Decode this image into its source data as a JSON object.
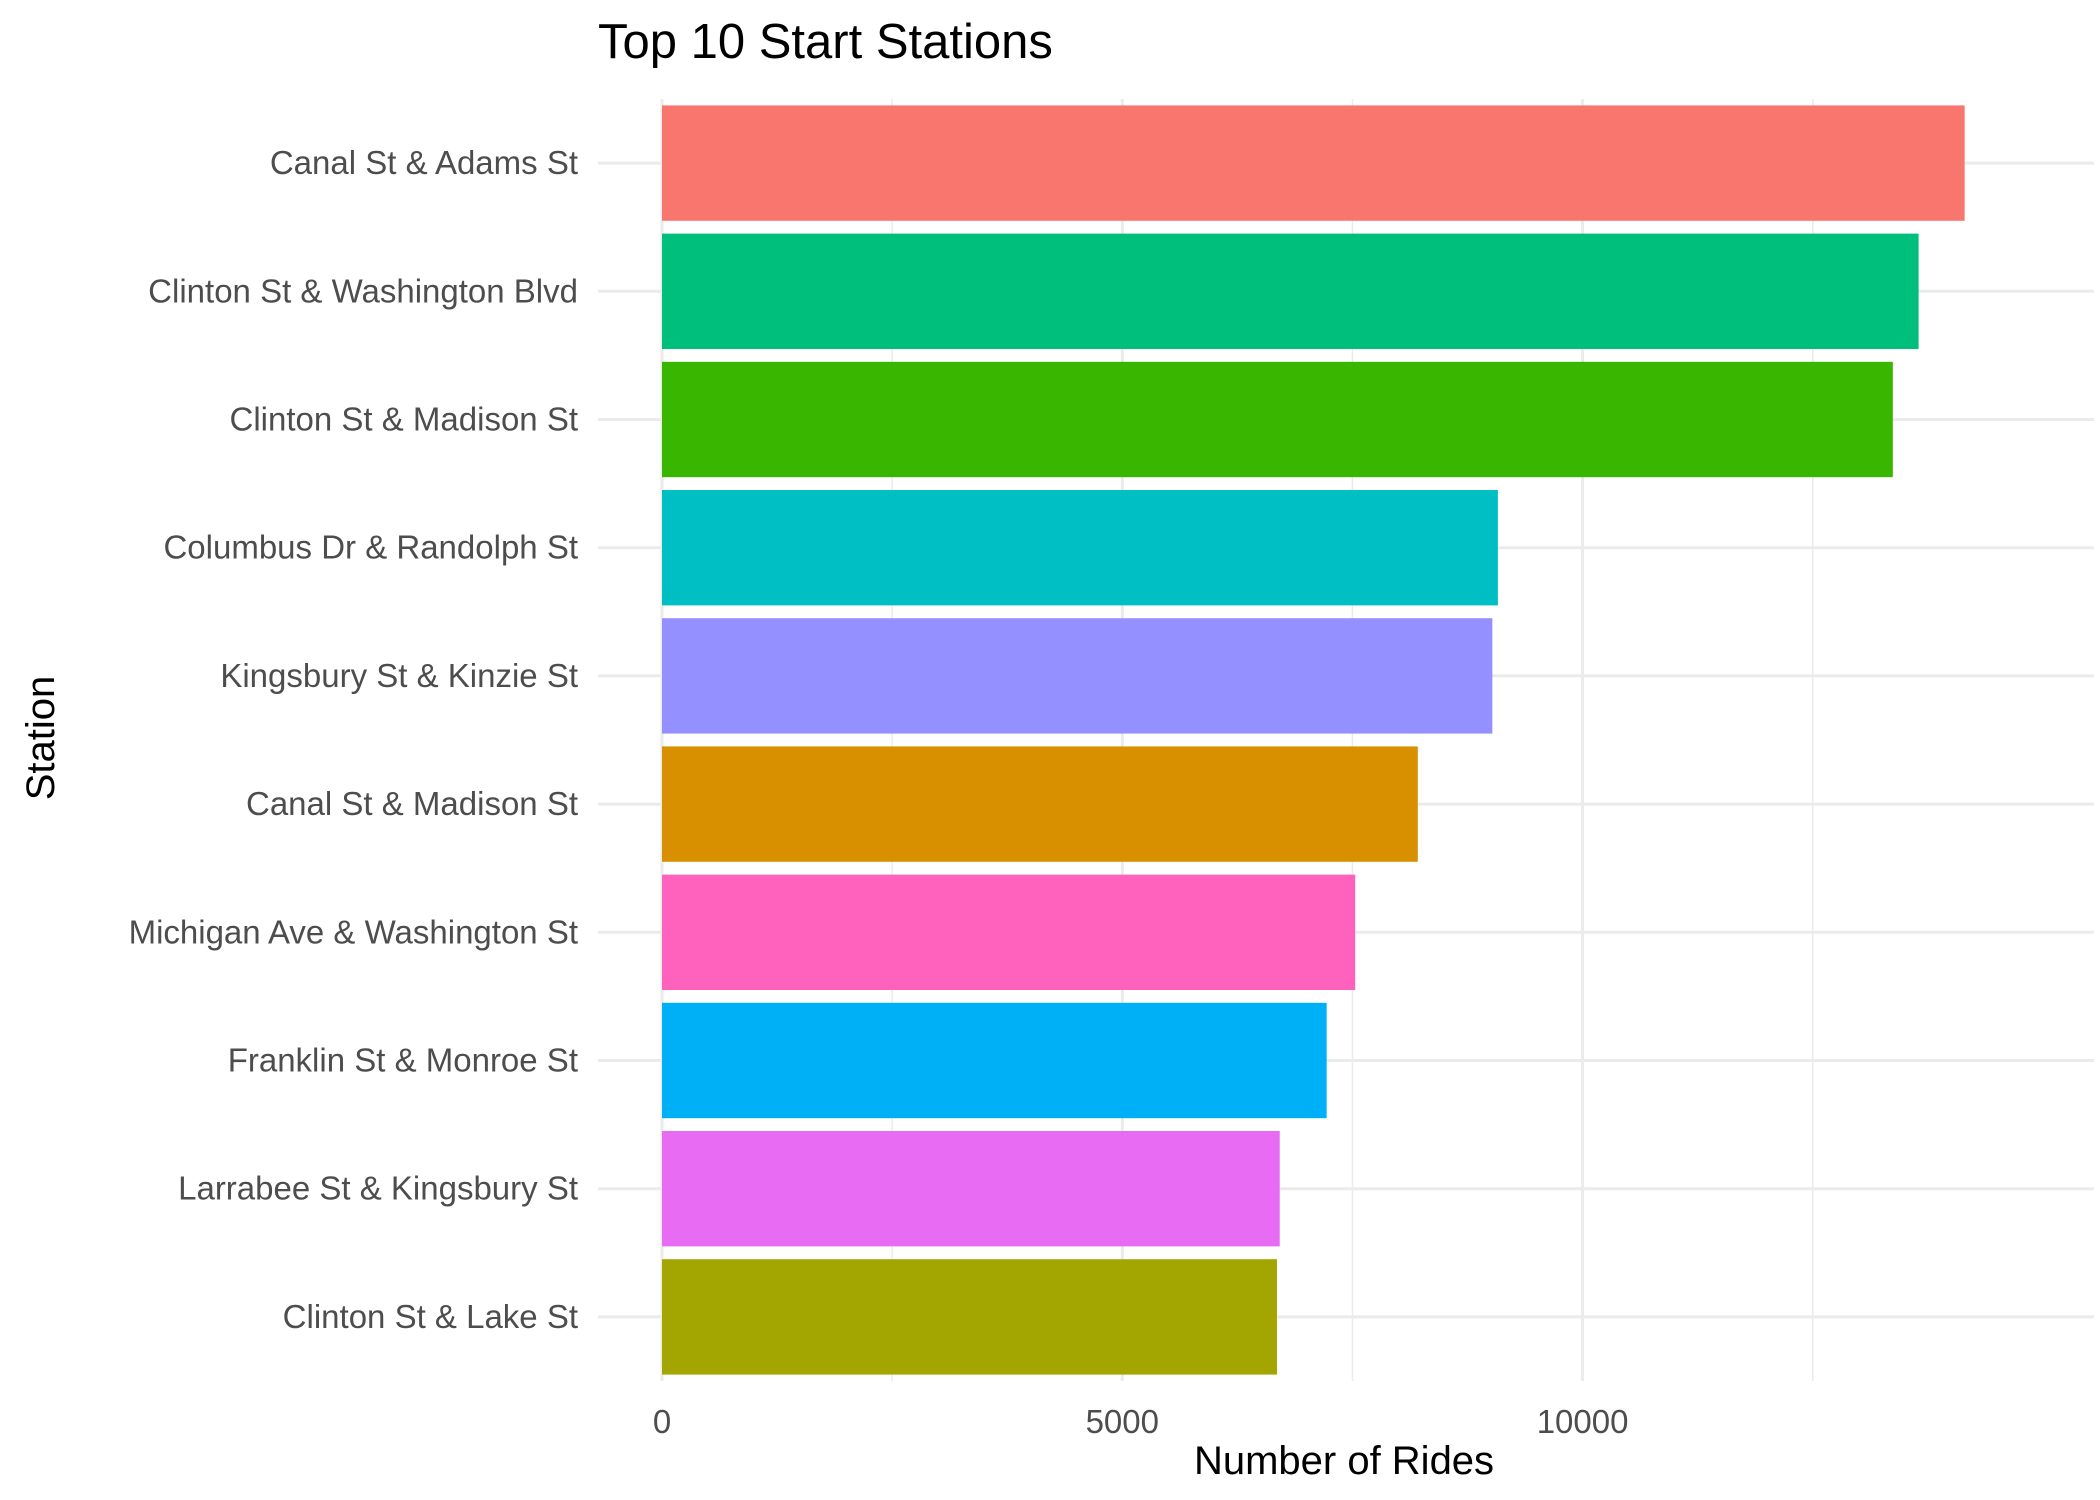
{
  "chart_data": {
    "type": "bar",
    "orientation": "horizontal",
    "title": "Top 10 Start Stations",
    "xlabel": "Number of Rides",
    "ylabel": "Station",
    "categories": [
      "Canal St & Adams St",
      "Clinton St & Washington Blvd",
      "Clinton St & Madison St",
      "Columbus Dr & Randolph St",
      "Kingsbury St & Kinzie St",
      "Canal St & Madison St",
      "Michigan Ave & Washington St",
      "Franklin St & Monroe St",
      "Larrabee St & Kingsbury St",
      "Clinton St & Lake St"
    ],
    "values": [
      14150,
      13650,
      13370,
      9080,
      9020,
      8210,
      7530,
      7220,
      6710,
      6680
    ],
    "colors": [
      "#F8766D",
      "#00BF7D",
      "#39B600",
      "#00BFC4",
      "#9590FF",
      "#D89000",
      "#FF62BC",
      "#00B0F6",
      "#E76BF3",
      "#A3A500"
    ],
    "xlim": [
      0,
      14860
    ],
    "x_ticks": [
      0,
      5000,
      10000
    ],
    "x_tick_labels": [
      "0",
      "5000",
      "10000"
    ],
    "x_minor_ticks": [
      2500,
      7500,
      12500
    ],
    "grid": true,
    "legend": "none"
  }
}
